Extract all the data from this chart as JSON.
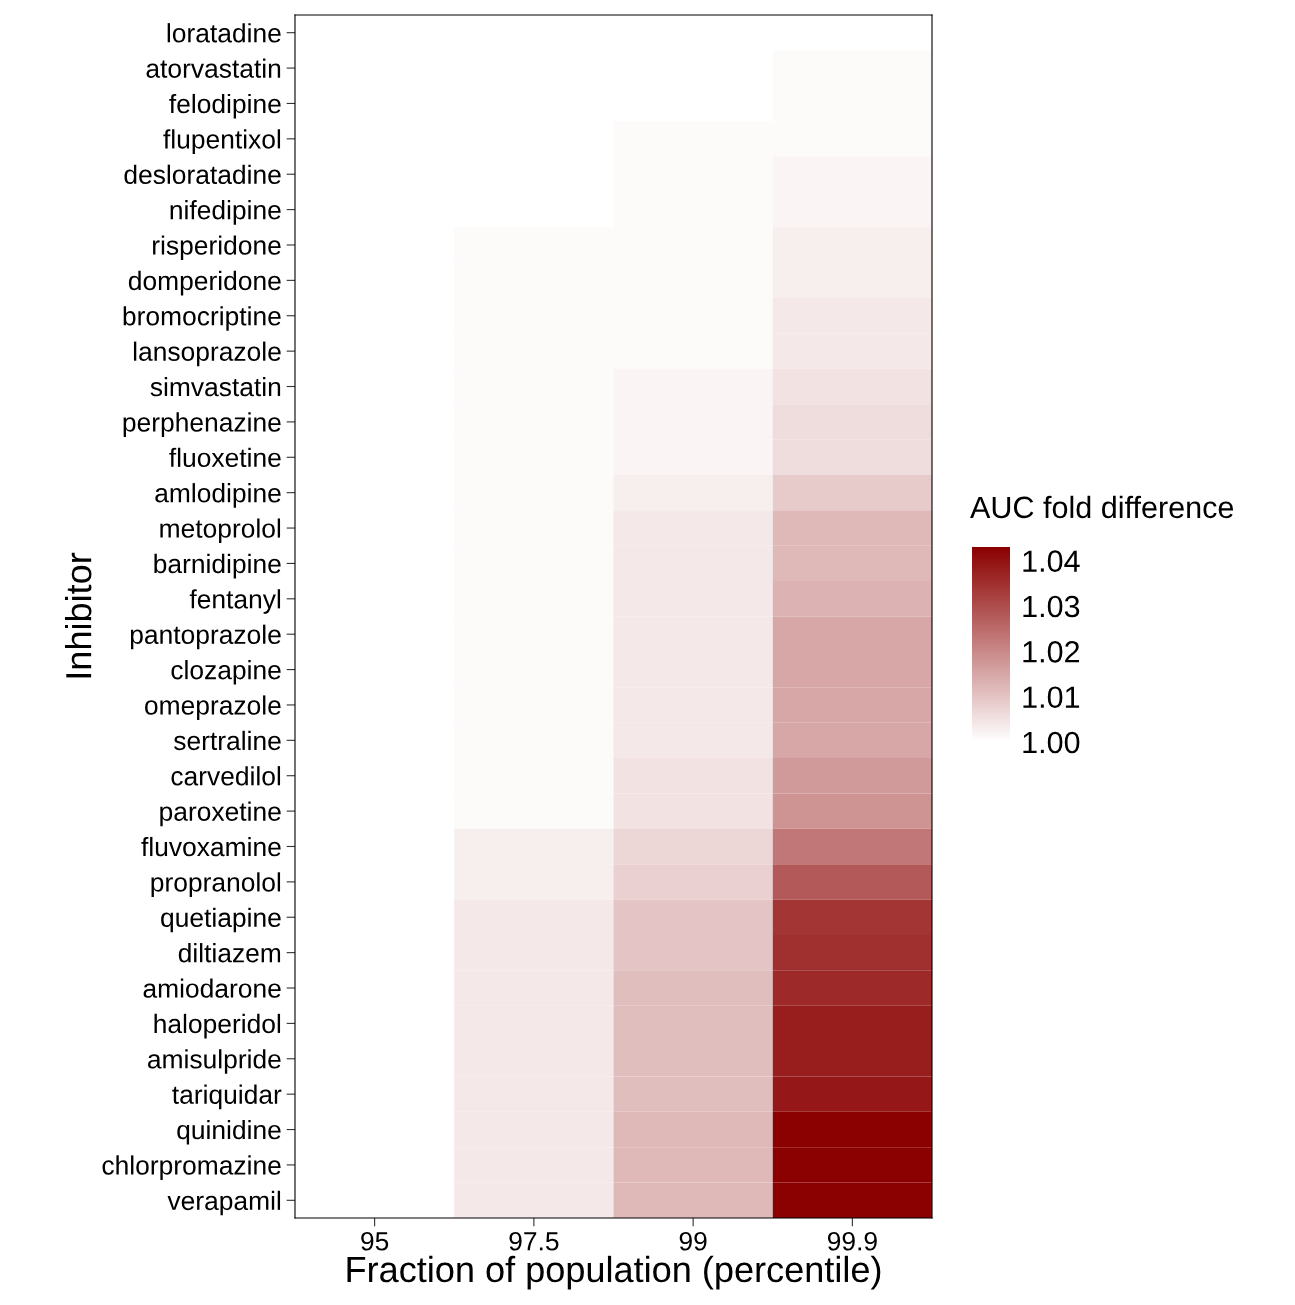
{
  "chart_data": {
    "type": "heatmap",
    "xlabel": "Fraction of population (percentile)",
    "ylabel": "Inhibitor",
    "clabel": "AUC fold difference",
    "categories": [
      "95",
      "97.5",
      "99",
      "99.9"
    ],
    "y_categories": [
      "loratadine",
      "atorvastatin",
      "felodipine",
      "flupentixol",
      "desloratadine",
      "nifedipine",
      "risperidone",
      "domperidone",
      "bromocriptine",
      "lansoprazole",
      "simvastatin",
      "perphenazine",
      "fluoxetine",
      "amlodipine",
      "metoprolol",
      "barnidipine",
      "fentanyl",
      "pantoprazole",
      "clozapine",
      "omeprazole",
      "sertraline",
      "carvedilol",
      "paroxetine",
      "fluvoxamine",
      "propranolol",
      "quetiapine",
      "diltiazem",
      "amiodarone",
      "haloperidol",
      "amisulpride",
      "tariquidar",
      "quinidine",
      "chlorpromazine",
      "verapamil"
    ],
    "cells": [
      [
        1.0,
        1.0,
        1.0,
        1.0
      ],
      [
        1.0,
        1.0,
        1.0,
        1.001
      ],
      [
        1.0,
        1.0,
        1.0,
        1.001
      ],
      [
        1.0,
        1.0,
        1.001,
        1.001
      ],
      [
        1.0,
        1.0,
        1.001,
        1.002
      ],
      [
        1.0,
        1.0,
        1.001,
        1.002
      ],
      [
        1.0,
        1.001,
        1.001,
        1.003
      ],
      [
        1.0,
        1.001,
        1.001,
        1.003
      ],
      [
        1.0,
        1.001,
        1.001,
        1.004
      ],
      [
        1.0,
        1.001,
        1.001,
        1.004
      ],
      [
        1.0,
        1.001,
        1.002,
        1.005
      ],
      [
        1.0,
        1.001,
        1.002,
        1.006
      ],
      [
        1.0,
        1.001,
        1.002,
        1.006
      ],
      [
        1.0,
        1.001,
        1.003,
        1.009
      ],
      [
        1.0,
        1.001,
        1.004,
        1.012
      ],
      [
        1.0,
        1.001,
        1.004,
        1.012
      ],
      [
        1.0,
        1.001,
        1.004,
        1.013
      ],
      [
        1.0,
        1.001,
        1.004,
        1.015
      ],
      [
        1.0,
        1.001,
        1.004,
        1.015
      ],
      [
        1.0,
        1.001,
        1.004,
        1.015
      ],
      [
        1.0,
        1.001,
        1.004,
        1.015
      ],
      [
        1.0,
        1.001,
        1.005,
        1.017
      ],
      [
        1.0,
        1.001,
        1.005,
        1.018
      ],
      [
        1.0,
        1.003,
        1.007,
        1.023
      ],
      [
        1.0,
        1.003,
        1.008,
        1.028
      ],
      [
        1.0,
        1.004,
        1.01,
        1.034
      ],
      [
        1.0,
        1.004,
        1.01,
        1.035
      ],
      [
        1.0,
        1.004,
        1.011,
        1.036
      ],
      [
        1.0,
        1.004,
        1.011,
        1.038
      ],
      [
        1.0,
        1.004,
        1.011,
        1.038
      ],
      [
        1.0,
        1.004,
        1.011,
        1.039
      ],
      [
        1.0,
        1.004,
        1.012,
        1.043
      ],
      [
        1.0,
        1.004,
        1.012,
        1.043
      ],
      [
        1.0,
        1.004,
        1.012,
        1.043
      ]
    ],
    "colors": [
      "#ffffff",
      "#8b0000"
    ],
    "clim": [
      1.0,
      1.043
    ],
    "cticks": [
      {
        "value": 1.0,
        "label": "1.00"
      },
      {
        "value": 1.01,
        "label": "1.01"
      },
      {
        "value": 1.02,
        "label": "1.02"
      },
      {
        "value": 1.03,
        "label": "1.03"
      },
      {
        "value": 1.04,
        "label": "1.04"
      }
    ],
    "grid": false
  }
}
